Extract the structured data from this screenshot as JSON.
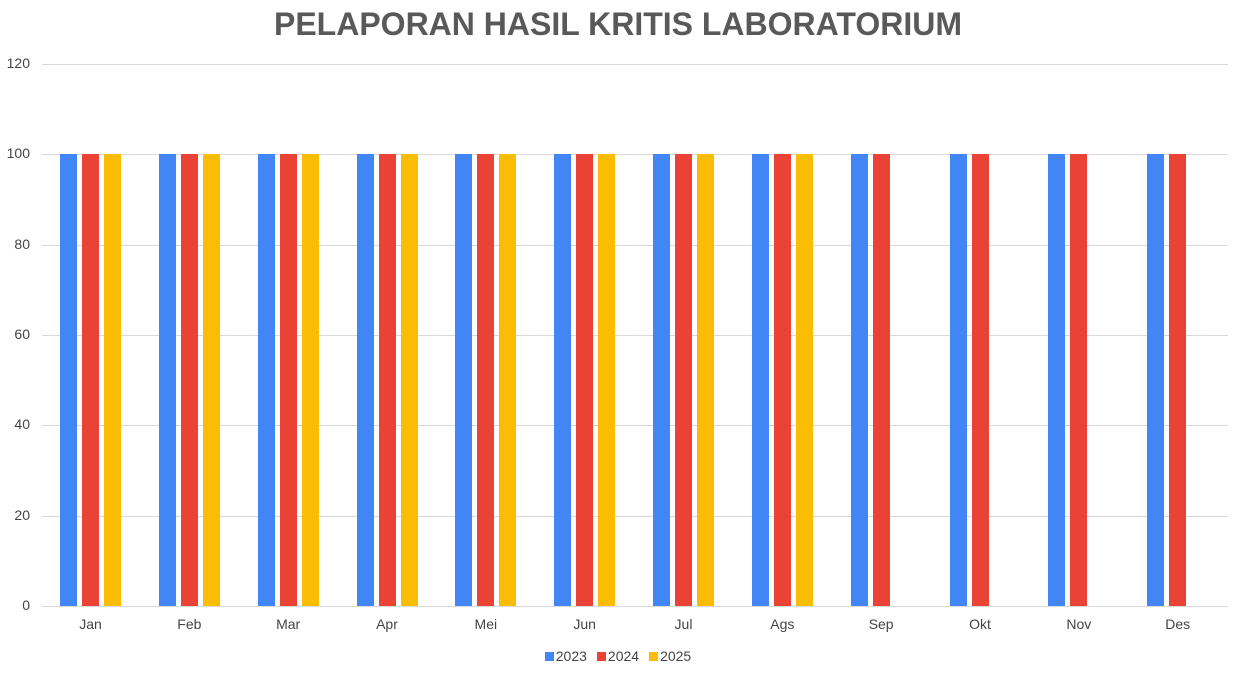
{
  "chart_data": {
    "type": "bar",
    "title": "PELAPORAN HASIL KRITIS LABORATORIUM",
    "xlabel": "",
    "ylabel": "",
    "ylim": [
      0,
      120
    ],
    "yticks": [
      0,
      20,
      40,
      60,
      80,
      100,
      120
    ],
    "grid": true,
    "legend_position": "bottom",
    "categories": [
      "Jan",
      "Feb",
      "Mar",
      "Apr",
      "Mei",
      "Jun",
      "Jul",
      "Ags",
      "Sep",
      "Okt",
      "Nov",
      "Des"
    ],
    "series": [
      {
        "name": "2023",
        "color": "#4285f4",
        "values": [
          100,
          100,
          100,
          100,
          100,
          100,
          100,
          100,
          100,
          100,
          100,
          100
        ]
      },
      {
        "name": "2024",
        "color": "#ea4335",
        "values": [
          100,
          100,
          100,
          100,
          100,
          100,
          100,
          100,
          100,
          100,
          100,
          100
        ]
      },
      {
        "name": "2025",
        "color": "#fbbc04",
        "values": [
          100,
          100,
          100,
          100,
          100,
          100,
          100,
          100,
          null,
          null,
          null,
          null
        ]
      }
    ]
  }
}
